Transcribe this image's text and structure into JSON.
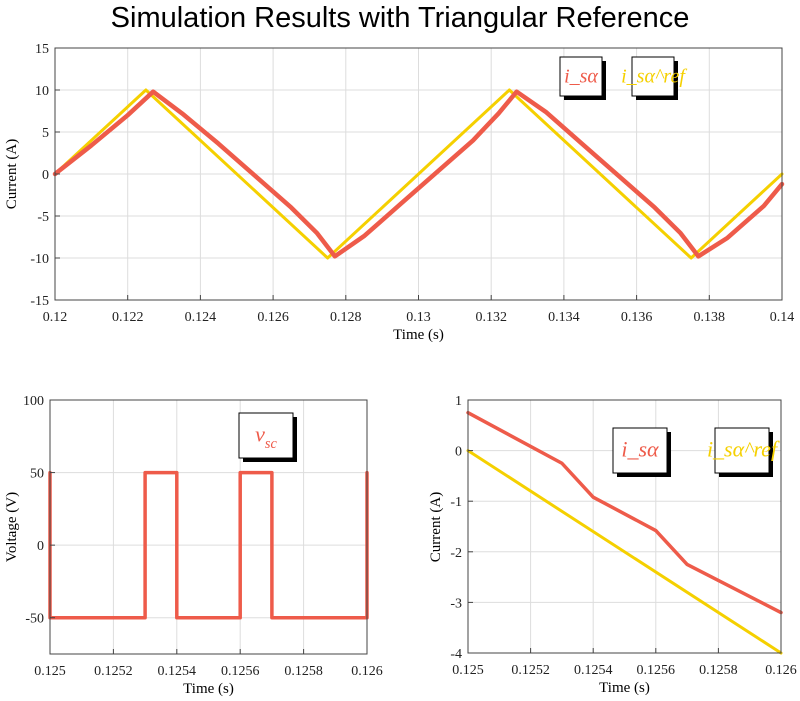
{
  "title": "Simulation Results with Triangular Reference",
  "colors": {
    "red": "#EE5B4A",
    "yellow": "#F5D000",
    "grid": "#dddddd"
  },
  "chart_data": [
    {
      "type": "line",
      "xlabel": "Time (s)",
      "ylabel": "Current (A)",
      "xlim": [
        0.12,
        0.14
      ],
      "ylim": [
        -15,
        15
      ],
      "xticks": [
        "0.12",
        "0.122",
        "0.124",
        "0.126",
        "0.128",
        "0.13",
        "0.132",
        "0.134",
        "0.136",
        "0.138",
        "0.14"
      ],
      "yticks": [
        "15",
        "10",
        "5",
        "0",
        "-5",
        "-10",
        "-15"
      ],
      "grid": true,
      "legend_position": "top-right",
      "series": [
        {
          "name": "i_sα",
          "color": "#EE5B4A",
          "x": [
            0.12,
            0.121,
            0.122,
            0.1227,
            0.1235,
            0.1245,
            0.1255,
            0.1265,
            0.1272,
            0.1277,
            0.1285,
            0.1295,
            0.1305,
            0.1315,
            0.1322,
            0.1327,
            0.1335,
            0.1345,
            0.1355,
            0.1365,
            0.1372,
            0.1377,
            0.1385,
            0.1395,
            0.14
          ],
          "y": [
            0.0,
            3.4,
            7.0,
            9.8,
            7.2,
            3.6,
            -0.2,
            -4.0,
            -7.0,
            -9.8,
            -7.4,
            -3.6,
            0.2,
            4.0,
            7.2,
            9.8,
            7.4,
            3.6,
            -0.2,
            -4.0,
            -7.0,
            -9.8,
            -7.6,
            -3.8,
            -1.2
          ]
        },
        {
          "name": "i_sα^ref",
          "color": "#F5D000",
          "x": [
            0.12,
            0.1225,
            0.1275,
            0.1325,
            0.1375,
            0.14
          ],
          "y": [
            0,
            10,
            -10,
            10,
            -10,
            0
          ]
        }
      ]
    },
    {
      "type": "line",
      "xlabel": "Time (s)",
      "ylabel": "Voltage (V)",
      "xlim": [
        0.125,
        0.126
      ],
      "ylim": [
        -75,
        100
      ],
      "xticks": [
        "0.125",
        "0.1252",
        "0.1254",
        "0.1256",
        "0.1258",
        "0.126"
      ],
      "yticks": [
        "100",
        "50",
        "0",
        "-50"
      ],
      "grid": true,
      "legend_position": "top-right",
      "series": [
        {
          "name": "v_sc",
          "color": "#EE5B4A",
          "x": [
            0.125,
            0.125,
            0.1253,
            0.1253,
            0.1254,
            0.1254,
            0.1256,
            0.1256,
            0.1257,
            0.1257,
            0.126,
            0.126
          ],
          "y": [
            50,
            -50,
            -50,
            50,
            50,
            -50,
            -50,
            50,
            50,
            -50,
            -50,
            50
          ]
        }
      ]
    },
    {
      "type": "line",
      "xlabel": "Time (s)",
      "ylabel": "Current (A)",
      "xlim": [
        0.125,
        0.126
      ],
      "ylim": [
        -4,
        1
      ],
      "xticks": [
        "0.125",
        "0.1252",
        "0.1254",
        "0.1256",
        "0.1258",
        "0.126"
      ],
      "yticks": [
        "1",
        "0",
        "-1",
        "-2",
        "-3",
        "-4"
      ],
      "grid": true,
      "legend_position": "top-right",
      "series": [
        {
          "name": "i_sα",
          "color": "#EE5B4A",
          "x": [
            0.125,
            0.1253,
            0.1254,
            0.1256,
            0.1257,
            0.126
          ],
          "y": [
            0.75,
            -0.25,
            -0.92,
            -1.58,
            -2.25,
            -3.2
          ]
        },
        {
          "name": "i_sα^ref",
          "color": "#F5D000",
          "x": [
            0.125,
            0.126
          ],
          "y": [
            0,
            -4
          ]
        }
      ]
    }
  ]
}
